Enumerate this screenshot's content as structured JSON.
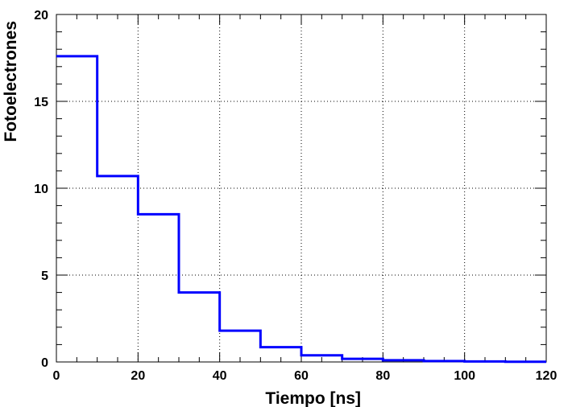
{
  "chart_data": {
    "type": "histogram-step",
    "xlabel": "Tiempo [ns]",
    "ylabel": "Fotoelectrones",
    "xlim": [
      0,
      120
    ],
    "ylim": [
      0,
      20
    ],
    "grid": true,
    "x_ticks": [
      0,
      20,
      40,
      60,
      80,
      100,
      120
    ],
    "y_ticks": [
      0,
      5,
      10,
      15,
      20
    ],
    "x_tick_labels": [
      "0",
      "20",
      "40",
      "60",
      "80",
      "100",
      "120"
    ],
    "y_tick_labels": [
      "0",
      "5",
      "10",
      "15",
      "20"
    ],
    "line_color": "#0000ff",
    "bins": [
      {
        "x0": 0,
        "x1": 10,
        "value": 17.6
      },
      {
        "x0": 10,
        "x1": 20,
        "value": 10.7
      },
      {
        "x0": 20,
        "x1": 30,
        "value": 8.5
      },
      {
        "x0": 30,
        "x1": 40,
        "value": 4.0
      },
      {
        "x0": 40,
        "x1": 50,
        "value": 1.8
      },
      {
        "x0": 50,
        "x1": 60,
        "value": 0.85
      },
      {
        "x0": 60,
        "x1": 70,
        "value": 0.38
      },
      {
        "x0": 70,
        "x1": 80,
        "value": 0.18
      },
      {
        "x0": 80,
        "x1": 90,
        "value": 0.1
      },
      {
        "x0": 90,
        "x1": 100,
        "value": 0.05
      },
      {
        "x0": 100,
        "x1": 110,
        "value": 0.03
      },
      {
        "x0": 110,
        "x1": 120,
        "value": 0.01
      }
    ]
  }
}
